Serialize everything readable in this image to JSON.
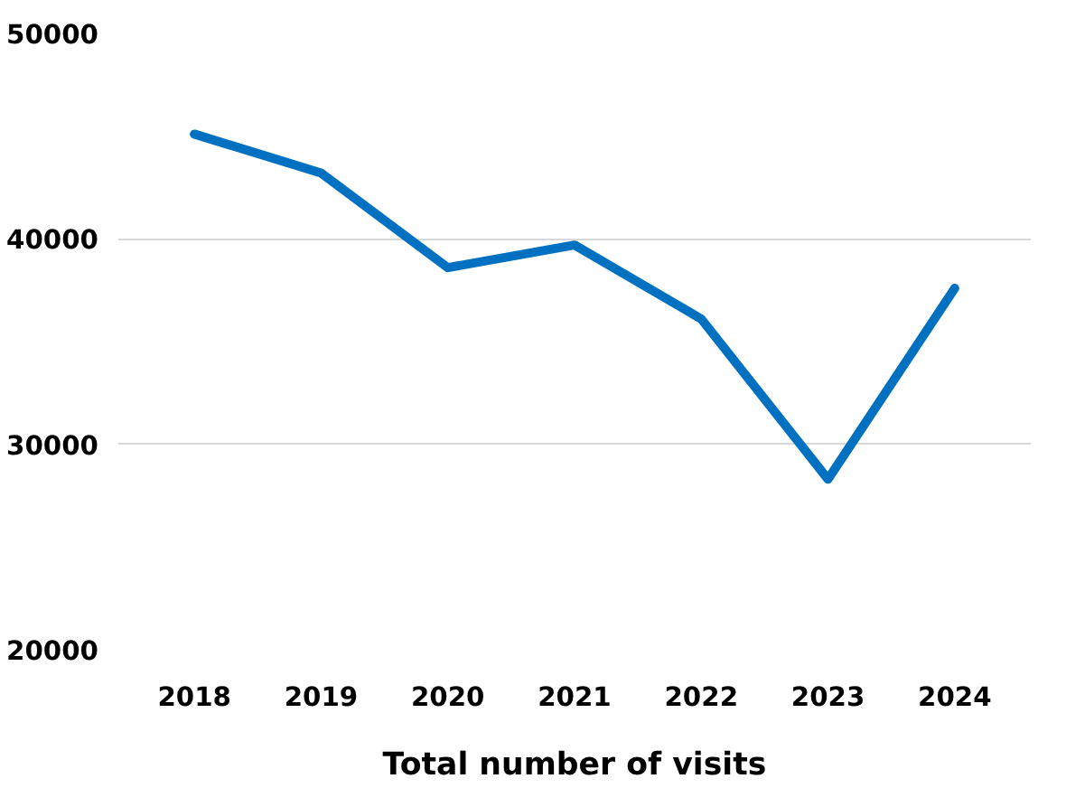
{
  "chart_data": {
    "type": "line",
    "xlabel": "Total number of visits",
    "categories": [
      "2018",
      "2019",
      "2020",
      "2021",
      "2022",
      "2023",
      "2024"
    ],
    "series": [
      {
        "color": "#0070c0",
        "values": [
          45100,
          43200,
          38600,
          39700,
          36100,
          28300,
          37600
        ]
      }
    ],
    "ylim": [
      20000,
      50000
    ],
    "yticks": [
      20000,
      30000,
      40000,
      50000
    ],
    "grid": "y"
  }
}
